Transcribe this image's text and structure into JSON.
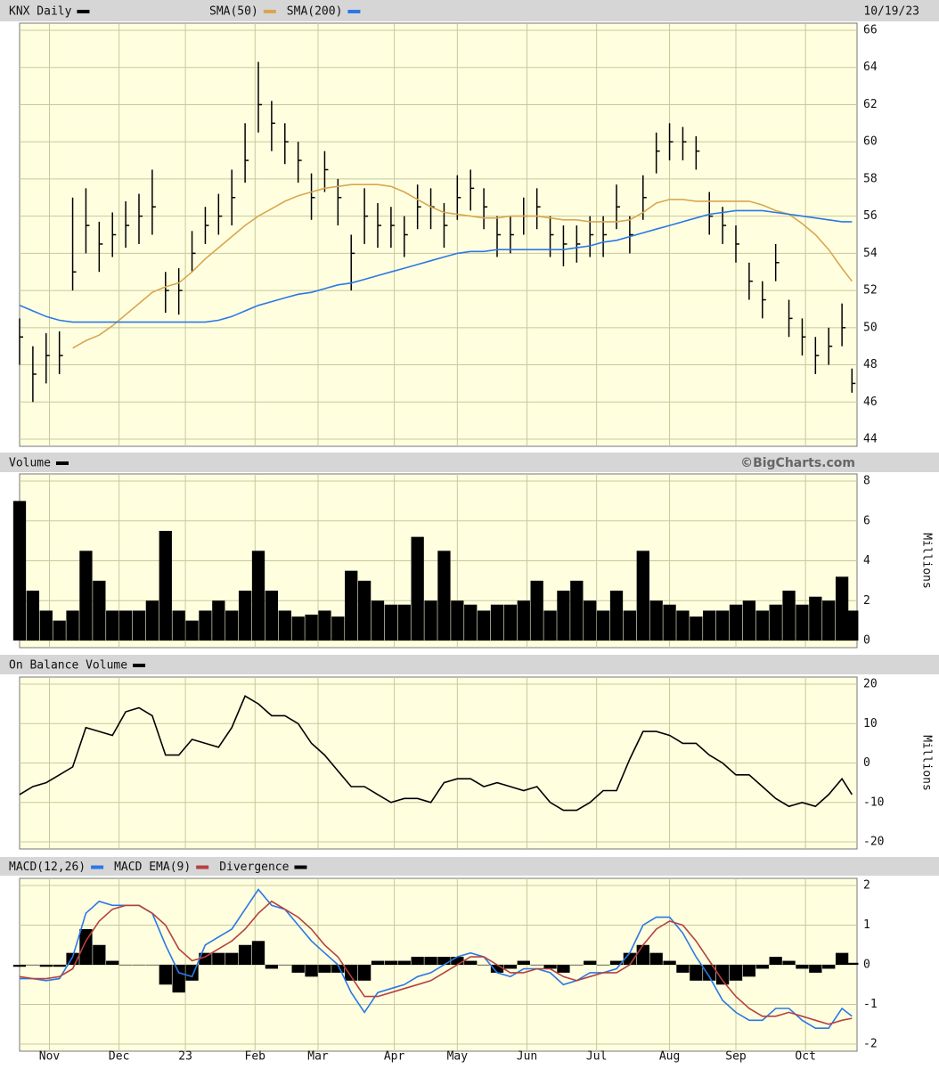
{
  "chart_data": [
    {
      "type": "ohlc",
      "title": "KNX Daily",
      "color": "#000000",
      "date": "10/19/23",
      "x": [
        0,
        4,
        8,
        12,
        16,
        20,
        24,
        28,
        32,
        36,
        40,
        44,
        48,
        52,
        56,
        60,
        64,
        68,
        72,
        76,
        80,
        84,
        88,
        92,
        96,
        100,
        104,
        108,
        112,
        116,
        120,
        124,
        128,
        132,
        136,
        140,
        144,
        148,
        152,
        156,
        160,
        164,
        168,
        172,
        176,
        180,
        184,
        188,
        192,
        196,
        200,
        204,
        208,
        212,
        216,
        220,
        224,
        228,
        232,
        236,
        240,
        244,
        248,
        251
      ],
      "high": [
        50.5,
        49,
        49.7,
        49.8,
        57,
        57.5,
        55.7,
        56.2,
        56.8,
        57.2,
        58.5,
        53,
        53.2,
        55.2,
        56.5,
        57.2,
        58.5,
        61,
        64.3,
        62.2,
        61,
        60,
        58.3,
        59.5,
        58,
        55,
        57.5,
        56.7,
        56.5,
        56,
        57.7,
        57.5,
        56.7,
        58.2,
        58.5,
        57.5,
        56,
        56,
        57,
        57.5,
        56,
        55.5,
        55.5,
        56,
        56,
        57.7,
        56,
        58.2,
        60.5,
        61,
        60.8,
        60.3,
        57.3,
        56.5,
        55.5,
        53.5,
        52.5,
        54.5,
        51.5,
        50.5,
        49.5,
        50,
        51.3,
        47.8
      ],
      "low": [
        48,
        46,
        47,
        47.5,
        52,
        54,
        53,
        53.8,
        54.3,
        54.5,
        55,
        50.8,
        50.7,
        53,
        54.5,
        55,
        55.5,
        57.8,
        60.5,
        59.5,
        58.8,
        57.8,
        55.8,
        57.3,
        55.5,
        52,
        54.5,
        54.3,
        54.3,
        53.8,
        55.3,
        55.3,
        54.3,
        55.8,
        56.3,
        55.3,
        53.8,
        54,
        55,
        55.3,
        53.8,
        53.3,
        53.5,
        53.8,
        53.8,
        55.3,
        54,
        55.8,
        58.3,
        59,
        59,
        58.5,
        55,
        54.5,
        53.5,
        51.5,
        50.5,
        52.5,
        49.5,
        48.5,
        47.5,
        48,
        49,
        46.5
      ],
      "close": [
        49.5,
        47.5,
        48.5,
        48.5,
        53,
        55.5,
        54.5,
        55,
        55.5,
        56,
        56.5,
        52,
        52,
        54,
        55.5,
        56,
        57,
        59,
        62,
        61,
        60,
        59,
        57,
        58.5,
        57,
        54,
        56,
        55.5,
        55.5,
        55,
        56.5,
        56.5,
        55.5,
        57,
        57.5,
        56.5,
        55,
        55,
        56,
        56.5,
        55,
        54.5,
        54.5,
        55,
        55,
        56.5,
        55,
        57,
        59.5,
        60,
        60,
        59.5,
        56,
        55.5,
        54.5,
        52.5,
        51.5,
        53.5,
        50.5,
        49.5,
        48.5,
        49,
        50,
        47
      ],
      "series": [
        {
          "name": "SMA(50)",
          "color": "#d9a650",
          "values": [
            null,
            null,
            null,
            null,
            48.9,
            49.3,
            49.6,
            50.1,
            50.7,
            51.3,
            51.9,
            52.2,
            52.4,
            53,
            53.7,
            54.3,
            54.9,
            55.5,
            56,
            56.4,
            56.8,
            57.1,
            57.3,
            57.5,
            57.6,
            57.7,
            57.7,
            57.7,
            57.6,
            57.3,
            56.9,
            56.5,
            56.2,
            56.1,
            56,
            55.9,
            55.9,
            56,
            56,
            56,
            55.9,
            55.8,
            55.8,
            55.7,
            55.7,
            55.7,
            55.8,
            56.2,
            56.7,
            56.9,
            56.9,
            56.8,
            56.8,
            56.8,
            56.8,
            56.8,
            56.6,
            56.3,
            56.1,
            55.6,
            55,
            54.2,
            53.2,
            52.5
          ]
        },
        {
          "name": "SMA(200)",
          "color": "#2a78e4",
          "values": [
            51.2,
            50.9,
            50.6,
            50.4,
            50.3,
            50.3,
            50.3,
            50.3,
            50.3,
            50.3,
            50.3,
            50.3,
            50.3,
            50.3,
            50.3,
            50.4,
            50.6,
            50.9,
            51.2,
            51.4,
            51.6,
            51.8,
            51.9,
            52.1,
            52.3,
            52.4,
            52.6,
            52.8,
            53,
            53.2,
            53.4,
            53.6,
            53.8,
            54,
            54.1,
            54.1,
            54.2,
            54.2,
            54.2,
            54.2,
            54.2,
            54.2,
            54.3,
            54.4,
            54.6,
            54.7,
            54.9,
            55.1,
            55.3,
            55.5,
            55.7,
            55.9,
            56.1,
            56.2,
            56.3,
            56.3,
            56.3,
            56.2,
            56.1,
            56,
            55.9,
            55.8,
            55.7,
            55.7
          ]
        }
      ],
      "xlim": [
        0,
        252
      ],
      "ylim": [
        44,
        66
      ],
      "yticks": [
        44,
        46,
        48,
        50,
        52,
        54,
        56,
        58,
        60,
        62,
        64,
        66
      ],
      "grid": true
    },
    {
      "type": "bar",
      "title": "Volume",
      "color": "#000000",
      "source": "©BigCharts.com",
      "ylabel": "Millions",
      "x": [
        0,
        4,
        8,
        12,
        16,
        20,
        24,
        28,
        32,
        36,
        40,
        44,
        48,
        52,
        56,
        60,
        64,
        68,
        72,
        76,
        80,
        84,
        88,
        92,
        96,
        100,
        104,
        108,
        112,
        116,
        120,
        124,
        128,
        132,
        136,
        140,
        144,
        148,
        152,
        156,
        160,
        164,
        168,
        172,
        176,
        180,
        184,
        188,
        192,
        196,
        200,
        204,
        208,
        212,
        216,
        220,
        224,
        228,
        232,
        236,
        240,
        244,
        248,
        251
      ],
      "values": [
        7,
        2.5,
        1.5,
        1,
        1.5,
        4.5,
        3,
        1.5,
        1.5,
        1.5,
        2,
        5.5,
        1.5,
        1,
        1.5,
        2,
        1.5,
        2.5,
        4.5,
        2.5,
        1.5,
        1.2,
        1.3,
        1.5,
        1.2,
        3.5,
        3,
        2,
        1.8,
        1.8,
        5.2,
        2,
        4.5,
        2,
        1.8,
        1.5,
        1.8,
        1.8,
        2,
        3,
        1.5,
        2.5,
        3,
        2,
        1.5,
        2.5,
        1.5,
        4.5,
        2,
        1.8,
        1.5,
        1.2,
        1.5,
        1.5,
        1.8,
        2,
        1.5,
        1.8,
        2.5,
        1.8,
        2.2,
        2,
        3.2,
        1.5
      ],
      "xlim": [
        0,
        252
      ],
      "ylim": [
        0,
        8
      ],
      "yticks": [
        0,
        2,
        4,
        6,
        8
      ],
      "grid": true
    },
    {
      "type": "line",
      "title": "On Balance Volume",
      "color": "#000000",
      "ylabel": "Millions",
      "x": [
        0,
        4,
        8,
        12,
        16,
        20,
        24,
        28,
        32,
        36,
        40,
        44,
        48,
        52,
        56,
        60,
        64,
        68,
        72,
        76,
        80,
        84,
        88,
        92,
        96,
        100,
        104,
        108,
        112,
        116,
        120,
        124,
        128,
        132,
        136,
        140,
        144,
        148,
        152,
        156,
        160,
        164,
        168,
        172,
        176,
        180,
        184,
        188,
        192,
        196,
        200,
        204,
        208,
        212,
        216,
        220,
        224,
        228,
        232,
        236,
        240,
        244,
        248,
        251
      ],
      "values": [
        -8,
        -6,
        -5,
        -3,
        -1,
        9,
        8,
        7,
        13,
        14,
        12,
        2,
        2,
        6,
        5,
        4,
        9,
        17,
        15,
        12,
        12,
        10,
        5,
        2,
        -2,
        -6,
        -6,
        -8,
        -10,
        -9,
        -9,
        -10,
        -5,
        -4,
        -4,
        -6,
        -5,
        -6,
        -7,
        -6,
        -10,
        -12,
        -12,
        -10,
        -7,
        -7,
        1,
        8,
        8,
        7,
        5,
        5,
        2,
        0,
        -3,
        -3,
        -6,
        -9,
        -11,
        -10,
        -11,
        -8,
        -4,
        -8
      ],
      "xlim": [
        0,
        252
      ],
      "ylim": [
        -20,
        20
      ],
      "yticks": [
        -20,
        -10,
        0,
        10,
        20
      ],
      "grid": true
    },
    {
      "type": "macd",
      "x": [
        0,
        4,
        8,
        12,
        16,
        20,
        24,
        28,
        32,
        36,
        40,
        44,
        48,
        52,
        56,
        60,
        64,
        68,
        72,
        76,
        80,
        84,
        88,
        92,
        96,
        100,
        104,
        108,
        112,
        116,
        120,
        124,
        128,
        132,
        136,
        140,
        144,
        148,
        152,
        156,
        160,
        164,
        168,
        172,
        176,
        180,
        184,
        188,
        192,
        196,
        200,
        204,
        208,
        212,
        216,
        220,
        224,
        228,
        232,
        236,
        240,
        244,
        248,
        251
      ],
      "series": [
        {
          "name": "MACD(12,26)",
          "color": "#2a78e4",
          "values": [
            -0.35,
            -0.35,
            -0.4,
            -0.35,
            0.2,
            1.3,
            1.6,
            1.5,
            1.5,
            1.5,
            1.3,
            0.5,
            -0.2,
            -0.3,
            0.5,
            0.7,
            0.9,
            1.4,
            1.9,
            1.5,
            1.4,
            1,
            0.6,
            0.3,
            0,
            -0.7,
            -1.2,
            -0.7,
            -0.6,
            -0.5,
            -0.3,
            -0.2,
            0,
            0.2,
            0.3,
            0.2,
            -0.2,
            -0.3,
            -0.1,
            -0.1,
            -0.2,
            -0.5,
            -0.4,
            -0.2,
            -0.2,
            -0.1,
            0.3,
            1,
            1.2,
            1.2,
            0.8,
            0.2,
            -0.3,
            -0.9,
            -1.2,
            -1.4,
            -1.4,
            -1.1,
            -1.1,
            -1.4,
            -1.6,
            -1.6,
            -1.1,
            -1.3
          ]
        },
        {
          "name": "MACD EMA(9)",
          "color": "#b5413f",
          "values": [
            -0.3,
            -0.35,
            -0.35,
            -0.3,
            -0.1,
            0.6,
            1.1,
            1.4,
            1.5,
            1.5,
            1.3,
            1,
            0.4,
            0.1,
            0.2,
            0.4,
            0.6,
            0.9,
            1.3,
            1.6,
            1.4,
            1.2,
            0.9,
            0.5,
            0.2,
            -0.3,
            -0.8,
            -0.8,
            -0.7,
            -0.6,
            -0.5,
            -0.4,
            -0.2,
            0,
            0.2,
            0.2,
            0,
            -0.2,
            -0.2,
            -0.1,
            -0.1,
            -0.3,
            -0.4,
            -0.3,
            -0.2,
            -0.2,
            0,
            0.5,
            0.9,
            1.1,
            1,
            0.6,
            0.1,
            -0.4,
            -0.8,
            -1.1,
            -1.3,
            -1.3,
            -1.2,
            -1.3,
            -1.4,
            -1.5,
            -1.4,
            -1.35
          ]
        },
        {
          "name": "Divergence",
          "color": "#000000",
          "type": "bar",
          "values": [
            -0.05,
            0,
            -0.05,
            -0.05,
            0.3,
            0.9,
            0.5,
            0.1,
            0,
            0,
            0,
            -0.5,
            -0.7,
            -0.4,
            0.3,
            0.3,
            0.3,
            0.5,
            0.6,
            -0.1,
            0,
            -0.2,
            -0.3,
            -0.2,
            -0.2,
            -0.4,
            -0.4,
            0.1,
            0.1,
            0.1,
            0.2,
            0.2,
            0.2,
            0.2,
            0.1,
            0,
            -0.2,
            -0.1,
            0.1,
            0,
            -0.1,
            -0.2,
            0,
            0.1,
            0,
            0.1,
            0.3,
            0.5,
            0.3,
            0.1,
            -0.2,
            -0.4,
            -0.4,
            -0.5,
            -0.4,
            -0.3,
            -0.1,
            0.2,
            0.1,
            -0.1,
            -0.2,
            -0.1,
            0.3,
            0.05
          ]
        }
      ],
      "xlim": [
        0,
        252
      ],
      "ylim": [
        -2,
        2
      ],
      "yticks": [
        -2,
        -1,
        0,
        1,
        2
      ],
      "grid": true,
      "xticks": [
        {
          "value": 9,
          "label": "Nov"
        },
        {
          "value": 30,
          "label": "Dec"
        },
        {
          "value": 50,
          "label": "23"
        },
        {
          "value": 71,
          "label": "Feb"
        },
        {
          "value": 90,
          "label": "Mar"
        },
        {
          "value": 113,
          "label": "Apr"
        },
        {
          "value": 132,
          "label": "May"
        },
        {
          "value": 153,
          "label": "Jun"
        },
        {
          "value": 174,
          "label": "Jul"
        },
        {
          "value": 196,
          "label": "Aug"
        },
        {
          "value": 216,
          "label": "Sep"
        },
        {
          "value": 237,
          "label": "Oct"
        }
      ]
    }
  ]
}
